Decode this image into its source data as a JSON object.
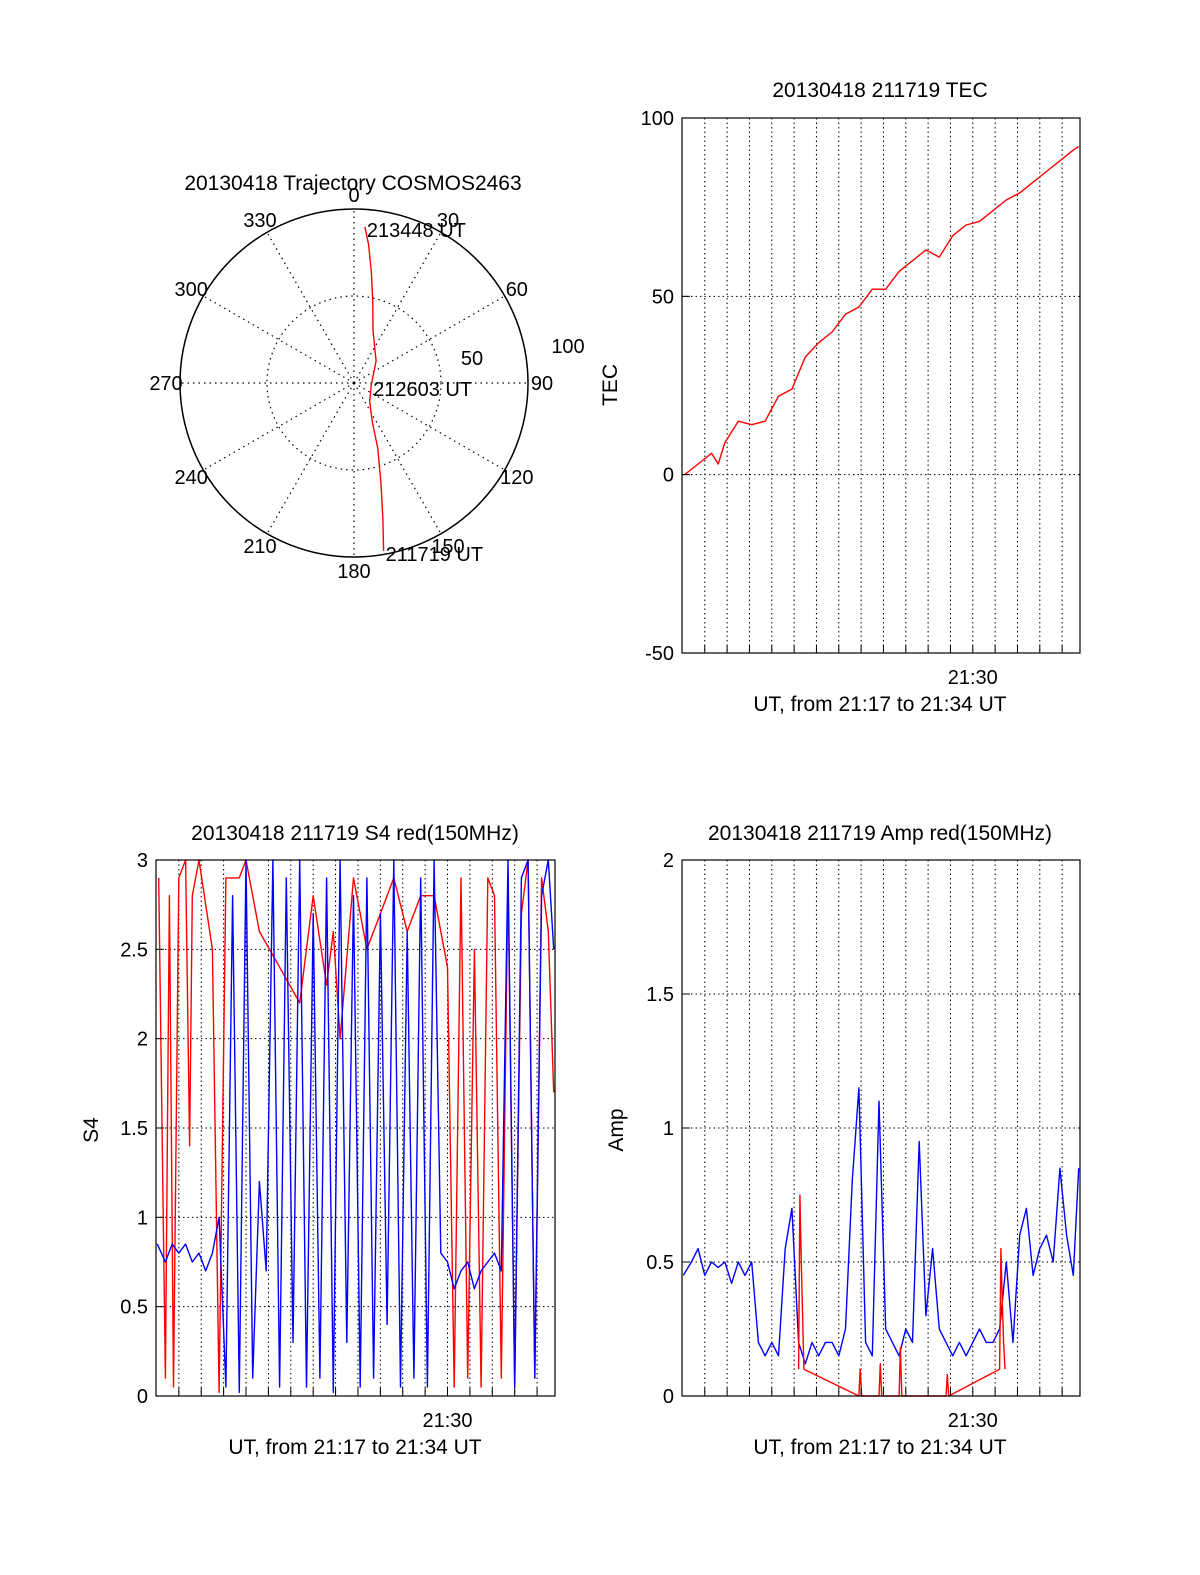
{
  "colors": {
    "red": "#ff0000",
    "blue": "#0000ff",
    "axis": "#000000",
    "grid": "#000000"
  },
  "chart_data": [
    {
      "id": "trajectory",
      "type": "scatter",
      "title": "20130418 Trajectory COSMOS2463",
      "projection": "polar",
      "azimuth_labels": [
        "0",
        "30",
        "60",
        "90",
        "120",
        "150",
        "180",
        "210",
        "240",
        "270",
        "300",
        "330"
      ],
      "radial_labels": [
        "50",
        "100"
      ],
      "grid": true,
      "series": [
        {
          "color": "#ff0000",
          "x_label": "azimuth_deg",
          "y_label": "zenith_distance",
          "points": [
            [
              170,
              98
            ],
            [
              168,
              80
            ],
            [
              165,
              60
            ],
            [
              160,
              40
            ],
            [
              155,
              25
            ],
            [
              140,
              14
            ],
            [
              100,
              10
            ],
            [
              45,
              18
            ],
            [
              20,
              32
            ],
            [
              13,
              48
            ],
            [
              9,
              64
            ],
            [
              6,
              80
            ],
            [
              4,
              90
            ]
          ]
        }
      ],
      "annotations": [
        {
          "text": "211719 UT",
          "azimuth": 170,
          "zenith": 98
        },
        {
          "text": "212603 UT",
          "azimuth": 100,
          "zenith": 10
        },
        {
          "text": "213448 UT",
          "azimuth": 4,
          "zenith": 90
        }
      ]
    },
    {
      "id": "tec",
      "type": "line",
      "title": "20130418 211719 TEC",
      "xlabel": "UT, from 21:17 to 21:34 UT",
      "ylabel": "TEC",
      "xlim": [
        21.283,
        21.58
      ],
      "ylim": [
        -50,
        100
      ],
      "yticks": [
        "-50",
        "0",
        "50",
        "100"
      ],
      "xtick_labels": [
        {
          "label": "21:30",
          "x": 21.5
        }
      ],
      "grid": true,
      "series": [
        {
          "color": "#ff0000",
          "x": [
            21.285,
            21.295,
            21.305,
            21.31,
            21.315,
            21.325,
            21.335,
            21.345,
            21.355,
            21.365,
            21.375,
            21.385,
            21.395,
            21.405,
            21.415,
            21.425,
            21.435,
            21.445,
            21.455,
            21.465,
            21.475,
            21.485,
            21.495,
            21.505,
            21.515,
            21.525,
            21.535,
            21.545,
            21.555,
            21.565,
            21.575,
            21.579
          ],
          "y": [
            0,
            3,
            6,
            3,
            9,
            15,
            14,
            15,
            22,
            24,
            33,
            37,
            40,
            45,
            47,
            52,
            52,
            57,
            60,
            63,
            61,
            67,
            70,
            71,
            74,
            77,
            79,
            82,
            85,
            88,
            91,
            92
          ]
        }
      ]
    },
    {
      "id": "s4",
      "type": "line",
      "title": "20130418 211719 S4 red(150MHz)",
      "xlabel": "UT, from 21:17 to 21:34 UT",
      "ylabel": "S4",
      "xlim": [
        21.283,
        21.58
      ],
      "ylim": [
        0,
        3
      ],
      "yticks": [
        "0",
        "0.5",
        "1",
        "1.5",
        "2",
        "2.5",
        "3"
      ],
      "xtick_labels": [
        {
          "label": "21:30",
          "x": 21.5
        }
      ],
      "grid": true,
      "series": [
        {
          "color": "#ff0000",
          "x": [
            21.285,
            21.29,
            21.293,
            21.296,
            21.3,
            21.305,
            21.308,
            21.31,
            21.315,
            21.325,
            21.33,
            21.335,
            21.345,
            21.35,
            21.36,
            21.375,
            21.39,
            21.4,
            21.41,
            21.415,
            21.42,
            21.43,
            21.44,
            21.45,
            21.46,
            21.47,
            21.48,
            21.49,
            21.5,
            21.505,
            21.51,
            21.515,
            21.52,
            21.525,
            21.53,
            21.535,
            21.54,
            21.545,
            21.55,
            21.555,
            21.56,
            21.565,
            21.57,
            21.575,
            21.579
          ],
          "y": [
            2.9,
            0.1,
            2.8,
            0.05,
            2.9,
            3.0,
            1.4,
            2.8,
            3.0,
            2.5,
            0.02,
            2.9,
            2.9,
            3.0,
            2.6,
            2.4,
            2.2,
            2.8,
            2.3,
            2.6,
            2.0,
            2.9,
            2.5,
            2.7,
            2.9,
            2.6,
            2.8,
            2.8,
            2.4,
            0.05,
            2.9,
            0.1,
            2.5,
            0.05,
            2.9,
            2.8,
            0.1,
            2.9,
            0.05,
            2.7,
            3.0,
            0.1,
            2.9,
            2.6,
            1.7
          ]
        },
        {
          "color": "#0000ff",
          "x": [
            21.284,
            21.29,
            21.295,
            21.3,
            21.305,
            21.31,
            21.315,
            21.32,
            21.325,
            21.33,
            21.335,
            21.34,
            21.345,
            21.35,
            21.355,
            21.36,
            21.365,
            21.37,
            21.375,
            21.38,
            21.385,
            21.39,
            21.395,
            21.4,
            21.405,
            21.41,
            21.415,
            21.42,
            21.425,
            21.43,
            21.435,
            21.44,
            21.445,
            21.45,
            21.455,
            21.46,
            21.465,
            21.47,
            21.475,
            21.48,
            21.485,
            21.49,
            21.495,
            21.5,
            21.505,
            21.51,
            21.515,
            21.52,
            21.525,
            21.53,
            21.535,
            21.54,
            21.545,
            21.55,
            21.555,
            21.56,
            21.565,
            21.57,
            21.575,
            21.579
          ],
          "y": [
            0.85,
            0.75,
            0.85,
            0.8,
            0.85,
            0.75,
            0.8,
            0.7,
            0.8,
            1.0,
            0.05,
            2.8,
            0.02,
            3.0,
            0.1,
            1.2,
            0.7,
            3.0,
            0.05,
            2.9,
            0.3,
            3.0,
            0.05,
            2.7,
            0.1,
            2.9,
            0.02,
            3.0,
            0.3,
            2.8,
            0.05,
            2.9,
            0.1,
            2.7,
            0.4,
            3.0,
            0.05,
            2.6,
            0.1,
            2.9,
            0.05,
            3.0,
            0.8,
            0.75,
            0.6,
            0.7,
            0.75,
            0.6,
            0.7,
            0.75,
            0.8,
            0.7,
            3.0,
            0.05,
            2.9,
            3.0,
            0.1,
            2.8,
            3.0,
            2.5
          ]
        }
      ]
    },
    {
      "id": "amp",
      "type": "line",
      "title": "20130418 211719 Amp red(150MHz)",
      "xlabel": "UT, from 21:17 to 21:34 UT",
      "ylabel": "Amp",
      "xlim": [
        21.283,
        21.58
      ],
      "ylim": [
        0,
        2
      ],
      "yticks": [
        "0",
        "0.5",
        "1",
        "1.5",
        "2"
      ],
      "xtick_labels": [
        {
          "label": "21:30",
          "x": 21.5
        }
      ],
      "grid": true,
      "series": [
        {
          "color": "#0000ff",
          "x": [
            21.284,
            21.29,
            21.295,
            21.3,
            21.305,
            21.31,
            21.315,
            21.32,
            21.325,
            21.33,
            21.335,
            21.34,
            21.345,
            21.35,
            21.355,
            21.36,
            21.365,
            21.37,
            21.375,
            21.38,
            21.385,
            21.39,
            21.395,
            21.4,
            21.405,
            21.41,
            21.415,
            21.42,
            21.425,
            21.43,
            21.435,
            21.44,
            21.445,
            21.45,
            21.455,
            21.46,
            21.465,
            21.47,
            21.475,
            21.48,
            21.485,
            21.49,
            21.495,
            21.5,
            21.505,
            21.51,
            21.515,
            21.52,
            21.525,
            21.53,
            21.535,
            21.54,
            21.545,
            21.55,
            21.555,
            21.56,
            21.565,
            21.57,
            21.575,
            21.579
          ],
          "y": [
            0.45,
            0.5,
            0.55,
            0.45,
            0.5,
            0.48,
            0.5,
            0.42,
            0.5,
            0.45,
            0.5,
            0.2,
            0.15,
            0.2,
            0.15,
            0.55,
            0.7,
            0.2,
            0.12,
            0.2,
            0.15,
            0.2,
            0.2,
            0.15,
            0.25,
            0.8,
            1.15,
            0.2,
            0.15,
            1.1,
            0.25,
            0.2,
            0.15,
            0.25,
            0.2,
            0.95,
            0.3,
            0.55,
            0.25,
            0.2,
            0.15,
            0.2,
            0.15,
            0.2,
            0.25,
            0.2,
            0.2,
            0.25,
            0.5,
            0.2,
            0.6,
            0.7,
            0.45,
            0.55,
            0.6,
            0.5,
            0.85,
            0.6,
            0.45,
            0.85
          ]
        },
        {
          "color": "#ff0000",
          "x": [
            21.37,
            21.371,
            21.372,
            21.373,
            21.374,
            21.415,
            21.416,
            21.417,
            21.43,
            21.431,
            21.432,
            21.445,
            21.446,
            21.447,
            21.48,
            21.481,
            21.482,
            21.52,
            21.521,
            21.522,
            21.523,
            21.524
          ],
          "y": [
            0.1,
            0.75,
            0.5,
            0.3,
            0.1,
            0.0,
            0.1,
            0.0,
            0.0,
            0.12,
            0.0,
            0.0,
            0.18,
            0.0,
            0.0,
            0.08,
            0.0,
            0.1,
            0.55,
            0.35,
            0.2,
            0.1
          ]
        }
      ]
    }
  ]
}
